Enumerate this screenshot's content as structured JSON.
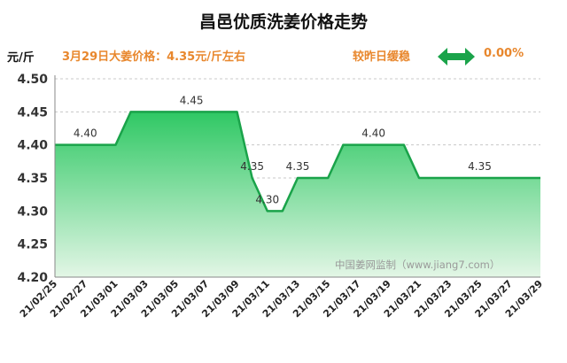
{
  "header": {
    "title": "昌邑优质洗姜价格走势",
    "unit": "元/斤",
    "price_text": "3月29日大姜价格：4.35元/斤左右",
    "trend_text": "较昨日缓稳",
    "change_text": "0.00%",
    "trend_icon": "double-arrow-icon",
    "trend_color": "#1aa34a",
    "accent_color": "#e8872d"
  },
  "watermark": "中国姜网监制（www.jiang7.com）",
  "chart_data": {
    "type": "area",
    "x": [
      "21/02/25",
      "21/02/26",
      "21/02/27",
      "21/02/28",
      "21/03/01",
      "21/03/02",
      "21/03/03",
      "21/03/04",
      "21/03/05",
      "21/03/06",
      "21/03/07",
      "21/03/08",
      "21/03/09",
      "21/03/10",
      "21/03/11",
      "21/03/12",
      "21/03/13",
      "21/03/14",
      "21/03/15",
      "21/03/16",
      "21/03/17",
      "21/03/18",
      "21/03/19",
      "21/03/20",
      "21/03/21",
      "21/03/22",
      "21/03/23",
      "21/03/24",
      "21/03/25",
      "21/03/26",
      "21/03/27",
      "21/03/28",
      "21/03/29"
    ],
    "values": [
      4.4,
      4.4,
      4.4,
      4.4,
      4.4,
      4.45,
      4.45,
      4.45,
      4.45,
      4.45,
      4.45,
      4.45,
      4.45,
      4.35,
      4.3,
      4.3,
      4.35,
      4.35,
      4.35,
      4.4,
      4.4,
      4.4,
      4.4,
      4.4,
      4.35,
      4.35,
      4.35,
      4.35,
      4.35,
      4.35,
      4.35,
      4.35,
      4.35
    ],
    "x_tick_labels": [
      "21/02/25",
      "21/02/27",
      "21/03/01",
      "21/03/03",
      "21/03/05",
      "21/03/07",
      "21/03/09",
      "21/03/11",
      "21/03/13",
      "21/03/15",
      "21/03/17",
      "21/03/19",
      "21/03/21",
      "21/03/23",
      "21/03/25",
      "21/03/27",
      "21/03/29"
    ],
    "y_ticks": [
      "4.50",
      "4.45",
      "4.40",
      "4.35",
      "4.30",
      "4.25",
      "4.20"
    ],
    "ylim": [
      4.2,
      4.5
    ],
    "data_labels": [
      {
        "x": "21/02/27",
        "text": "4.40"
      },
      {
        "x": "21/03/06",
        "text": "4.45"
      },
      {
        "x": "21/03/10",
        "text": "4.35"
      },
      {
        "x": "21/03/11",
        "text": "4.30"
      },
      {
        "x": "21/03/13",
        "text": "4.35"
      },
      {
        "x": "21/03/18",
        "text": "4.40"
      },
      {
        "x": "21/03/25",
        "text": "4.35"
      }
    ],
    "grid": true,
    "line_color": "#1aa34a",
    "fill_top_color": "#2fc864",
    "fill_bottom_color": "#e3f6e6"
  }
}
